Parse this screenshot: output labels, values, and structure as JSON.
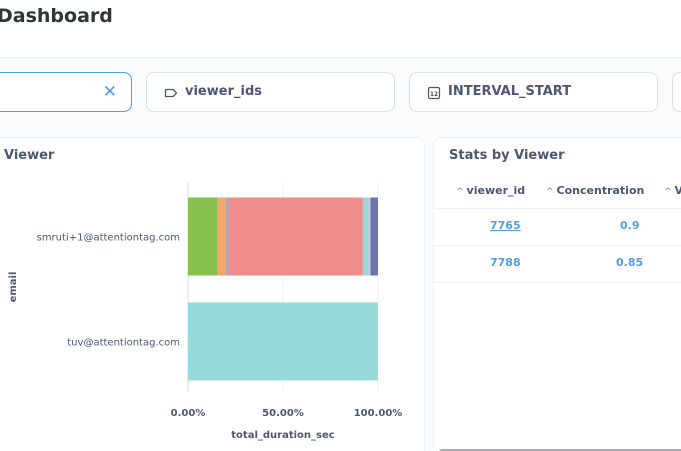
{
  "header": {
    "title": "Dashboard"
  },
  "filters": [
    {
      "label": "",
      "clear_icon": "close-icon",
      "active": true
    },
    {
      "label": "viewer_ids",
      "icon": "tag-icon"
    },
    {
      "label": "INTERVAL_START",
      "icon": "calendar-icon"
    }
  ],
  "chart_card": {
    "title": "Viewer",
    "colors": {
      "green": "#88bf4d",
      "orange": "#f2a86f",
      "salmon": "#ef8c8c",
      "teal": "#98d9d9",
      "purple": "#7172ad",
      "light": "#a989c5"
    }
  },
  "chart_data": {
    "type": "bar",
    "orientation": "horizontal",
    "stacked": "normalized",
    "categories": [
      "smruti+1@attentiontag.com",
      "tuv@attentiontag.com"
    ],
    "series": [
      {
        "values": [
          0.155,
          0
        ],
        "color": "#88bf4d"
      },
      {
        "values": [
          0.045,
          0
        ],
        "color": "#f2a86f"
      },
      {
        "values": [
          0.013,
          0
        ],
        "color": "#a9acb3"
      },
      {
        "values": [
          0.707,
          0
        ],
        "color": "#ef8c8c"
      },
      {
        "values": [
          0.03,
          1.0
        ],
        "color": "#98d9d9"
      },
      {
        "values": [
          0.01,
          0
        ],
        "color": "#c8c8e8"
      },
      {
        "values": [
          0.04,
          0
        ],
        "color": "#7172ad"
      }
    ],
    "xlabel": "total_duration_sec",
    "ylabel": "email",
    "xlim": [
      0,
      1
    ],
    "x_ticks": [
      "0.00%",
      "50.00%",
      "100.00%"
    ],
    "grid": true
  },
  "table_card": {
    "title": "Stats by Viewer",
    "columns": [
      "viewer_id",
      "Concentration",
      "V"
    ],
    "rows": [
      {
        "viewer_id": "7765",
        "concentration": "0.9"
      },
      {
        "viewer_id": "7788",
        "concentration": "0.85"
      }
    ]
  }
}
